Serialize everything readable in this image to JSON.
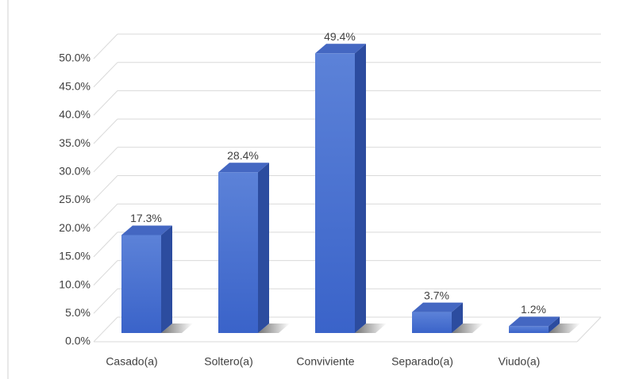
{
  "chart_data": {
    "type": "bar3d",
    "categories": [
      "Casado(a)",
      "Soltero(a)",
      "Conviviente",
      "Separado(a)",
      "Viudo(a)"
    ],
    "values": [
      17.3,
      28.4,
      49.4,
      3.7,
      1.2
    ],
    "value_labels": [
      "17.3%",
      "28.4%",
      "49.4%",
      "3.7%",
      "1.2%"
    ],
    "color": "#4a70d0",
    "ylim": [
      0,
      50
    ],
    "yticks": [
      {
        "value": 0,
        "label": "0.0%"
      },
      {
        "value": 5,
        "label": "5.0%"
      },
      {
        "value": 10,
        "label": "10.0%"
      },
      {
        "value": 15,
        "label": "15.0%"
      },
      {
        "value": 20,
        "label": "20.0%"
      },
      {
        "value": 25,
        "label": "25.0%"
      },
      {
        "value": 30,
        "label": "30.0%"
      },
      {
        "value": 35,
        "label": "35.0%"
      },
      {
        "value": 40,
        "label": "40.0%"
      },
      {
        "value": 45,
        "label": "45.0%"
      },
      {
        "value": 50,
        "label": "50.0%"
      }
    ],
    "grid": true
  }
}
